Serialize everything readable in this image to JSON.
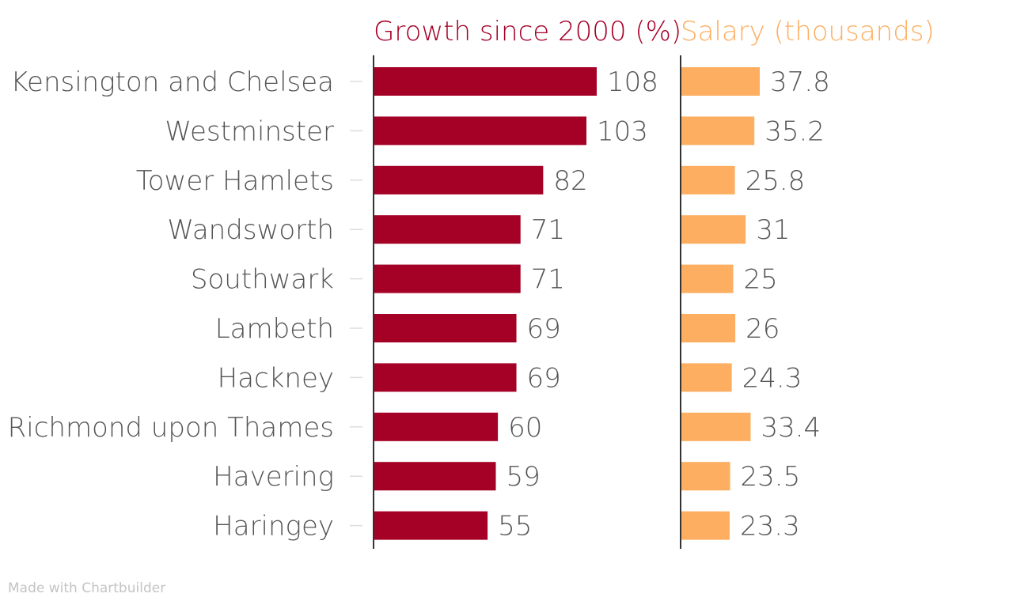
{
  "chart_data": {
    "type": "bar",
    "orientation": "horizontal",
    "categories": [
      "Kensington and Chelsea",
      "Westminster",
      "Tower Hamlets",
      "Wandsworth",
      "Southwark",
      "Lambeth",
      "Hackney",
      "Richmond upon Thames",
      "Havering",
      "Haringey"
    ],
    "series": [
      {
        "name": "Growth since 2000 (%)",
        "color": "#a50026",
        "values": [
          108,
          103,
          82,
          71,
          71,
          69,
          69,
          60,
          59,
          55
        ],
        "labels": [
          "108",
          "103",
          "82",
          "71",
          "71",
          "69",
          "69",
          "60",
          "59",
          "55"
        ],
        "xlim": [
          0,
          108
        ]
      },
      {
        "name": "Salary (thousands)",
        "color": "#fdae61",
        "values": [
          37.8,
          35.2,
          25.8,
          31,
          25,
          26,
          24.3,
          33.4,
          23.5,
          23.3
        ],
        "labels": [
          "37.8",
          "35.2",
          "25.8",
          "31",
          "25",
          "26",
          "24.3",
          "33.4",
          "23.5",
          "23.3"
        ],
        "xlim": [
          0,
          37.8
        ]
      }
    ],
    "grid": false,
    "legend": "none"
  },
  "credit": "Made with Chartbuilder"
}
